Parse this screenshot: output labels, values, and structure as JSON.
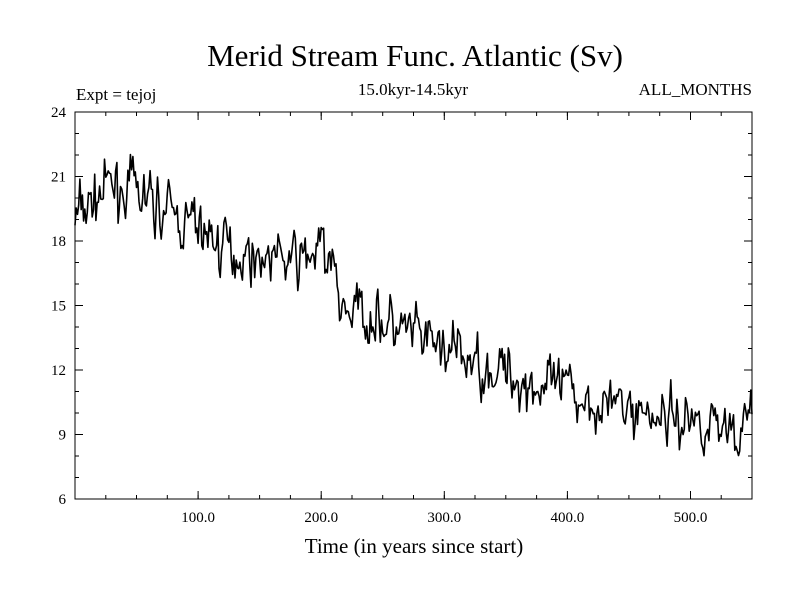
{
  "chart_data": {
    "type": "line",
    "title": "Merid Stream Func. Atlantic (Sv)",
    "subtitle": "15.0kyr-14.5kyr",
    "left_label": "Expt = tejoj",
    "right_label": "ALL_MONTHS",
    "xlabel": "Time (in years since start)",
    "ylabel": "",
    "xlim": [
      0,
      550
    ],
    "ylim": [
      6,
      24
    ],
    "xticks": [
      100,
      200,
      300,
      400,
      500
    ],
    "xtick_labels": [
      "100.0",
      "200.0",
      "300.0",
      "400.0",
      "500.0"
    ],
    "xminor_step": 25,
    "yticks": [
      6,
      9,
      12,
      15,
      18,
      21,
      24
    ],
    "ytick_labels": [
      "6",
      "9",
      "12",
      "15",
      "18",
      "21",
      "24"
    ],
    "yminor_step": 1,
    "grid": false,
    "series": [
      {
        "name": "Merid Stream Func. Atlantic",
        "color": "#000000",
        "noise_amplitude": 1.1,
        "noise_seed": 7,
        "trend_x": [
          0,
          10,
          25,
          40,
          55,
          70,
          85,
          100,
          120,
          140,
          160,
          180,
          200,
          210,
          215,
          220,
          240,
          260,
          280,
          300,
          320,
          340,
          360,
          380,
          400,
          420,
          440,
          460,
          480,
          500,
          520,
          540,
          550
        ],
        "trend_y": [
          19.0,
          19.6,
          20.4,
          20.5,
          20.0,
          19.6,
          18.9,
          18.7,
          17.7,
          17.4,
          17.3,
          17.0,
          17.6,
          16.6,
          15.2,
          14.8,
          14.6,
          13.9,
          13.4,
          13.0,
          12.4,
          12.1,
          11.6,
          11.2,
          10.9,
          10.7,
          10.3,
          10.1,
          9.9,
          9.7,
          9.6,
          9.4,
          9.5
        ]
      }
    ]
  }
}
